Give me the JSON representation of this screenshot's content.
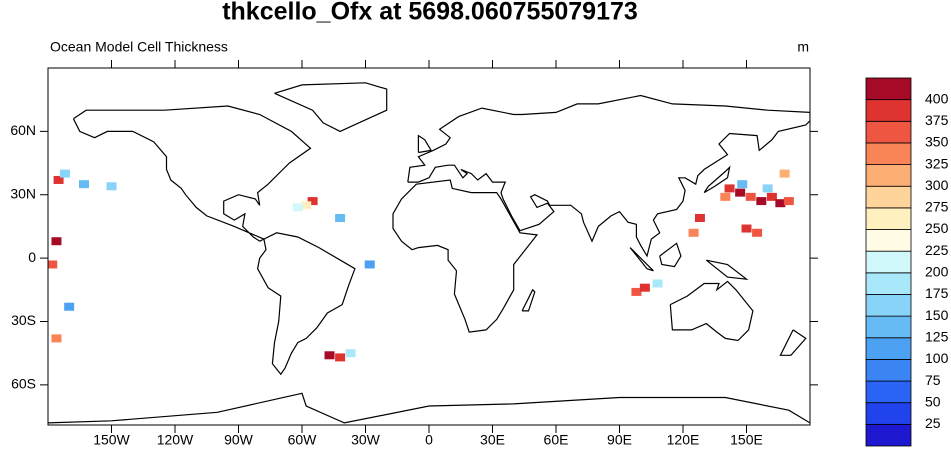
{
  "chart_data": {
    "type": "map",
    "title": "thkcello_Ofx at 5698.060755079173",
    "subtitle": "Ocean Model Cell Thickness",
    "units": "m",
    "xlim": [
      -180,
      180
    ],
    "ylim": [
      -79,
      90
    ],
    "xticks": [
      {
        "value": -150,
        "label": "150W"
      },
      {
        "value": -120,
        "label": "120W"
      },
      {
        "value": -90,
        "label": "90W"
      },
      {
        "value": -60,
        "label": "60W"
      },
      {
        "value": -30,
        "label": "30W"
      },
      0,
      {
        "value": 30,
        "label": "30E"
      },
      {
        "value": 60,
        "label": "60E"
      },
      {
        "value": 90,
        "label": "90E"
      },
      {
        "value": 120,
        "label": "120E"
      },
      {
        "value": 150,
        "label": "150E"
      }
    ],
    "yticks": [
      {
        "value": 60,
        "label": "60N"
      },
      {
        "value": 30,
        "label": "30N"
      },
      0,
      {
        "value": -30,
        "label": "30S"
      },
      {
        "value": -60,
        "label": "60S"
      }
    ],
    "colorbar": {
      "levels": [
        25,
        50,
        75,
        100,
        125,
        150,
        175,
        200,
        225,
        250,
        275,
        300,
        325,
        350,
        375,
        400
      ],
      "colors": [
        "#1f18d1",
        "#2043ee",
        "#2a64f4",
        "#3a84f3",
        "#4da1f2",
        "#66bbf4",
        "#88d3f8",
        "#a9e8fb",
        "#d1f8fb",
        "#fffbe5",
        "#fff1bf",
        "#fed49a",
        "#fcae74",
        "#f98457",
        "#ef5642",
        "#de3331",
        "#a50a26"
      ]
    },
    "points": {
      "lon": [
        142,
        147,
        152,
        157,
        162,
        166,
        170,
        160,
        148,
        140,
        150,
        155,
        128,
        125,
        168,
        -55,
        -58,
        -62,
        -42,
        -28,
        -47,
        -42,
        -37,
        98,
        102,
        108,
        -175,
        -172,
        -163,
        -150,
        -176,
        -170,
        -176,
        -178
      ],
      "lat": [
        33,
        31,
        29,
        27,
        29,
        26,
        27,
        33,
        35,
        29,
        14,
        12,
        19,
        12,
        40,
        27,
        25,
        24,
        19,
        -3,
        -46,
        -47,
        -45,
        -16,
        -14,
        -12,
        37,
        40,
        35,
        34,
        8,
        -23,
        -38,
        -3
      ],
      "values": [
        375,
        400,
        350,
        400,
        375,
        400,
        350,
        150,
        125,
        325,
        380,
        350,
        375,
        325,
        320,
        375,
        250,
        200,
        125,
        100,
        400,
        375,
        175,
        350,
        375,
        175,
        375,
        150,
        125,
        150,
        400,
        100,
        325,
        350
      ]
    }
  }
}
